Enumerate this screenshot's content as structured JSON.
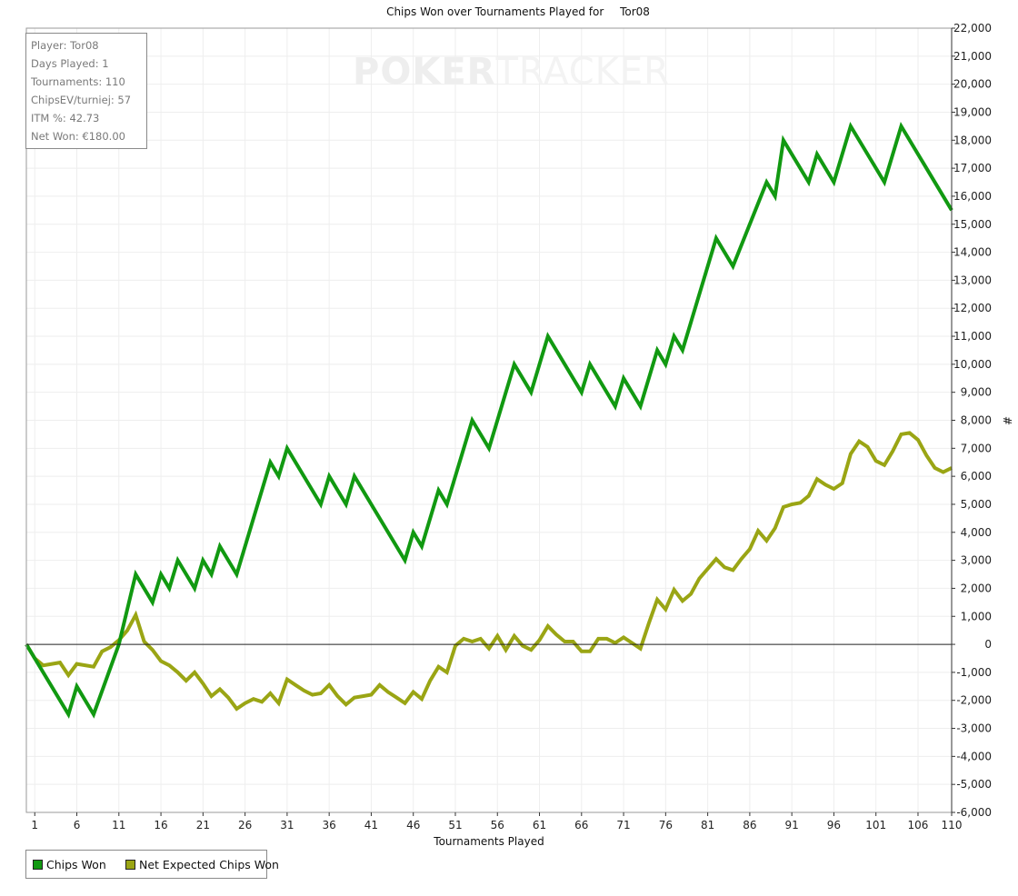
{
  "chart_data": {
    "type": "line",
    "title": "Chips Won over Tournaments Played for",
    "player_name": "Tor08",
    "xlabel": "Tournaments Played",
    "ylabel": "#",
    "xlim": [
      0,
      110
    ],
    "ylim": [
      -6000,
      22000
    ],
    "x_ticks": [
      1,
      6,
      11,
      16,
      21,
      26,
      31,
      36,
      41,
      46,
      51,
      56,
      61,
      66,
      71,
      76,
      81,
      86,
      91,
      96,
      101,
      106,
      110
    ],
    "y_ticks": [
      -6000,
      -5000,
      -4000,
      -3000,
      -2000,
      -1000,
      0,
      1000,
      2000,
      3000,
      4000,
      5000,
      6000,
      7000,
      8000,
      9000,
      10000,
      11000,
      12000,
      13000,
      14000,
      15000,
      16000,
      17000,
      18000,
      19000,
      20000,
      21000,
      22000
    ],
    "y_tick_labels": [
      "-6,000",
      "-5,000",
      "-4,000",
      "-3,000",
      "-2,000",
      "-1,000",
      "0",
      "1,000",
      "2,000",
      "3,000",
      "4,000",
      "5,000",
      "6,000",
      "7,000",
      "8,000",
      "9,000",
      "10,000",
      "11,000",
      "12,000",
      "13,000",
      "14,000",
      "15,000",
      "16,000",
      "17,000",
      "18,000",
      "19,000",
      "20,000",
      "21,000",
      "22,000"
    ],
    "grid": true,
    "legend_position": "bottom-left",
    "series": [
      {
        "name": "Chips Won",
        "color": "#119911",
        "x": [
          0,
          5,
          6,
          8,
          11,
          13,
          15,
          16,
          17,
          18,
          20,
          21,
          22,
          23,
          25,
          29,
          30,
          31,
          35,
          36,
          38,
          39,
          45,
          46,
          47,
          49,
          50,
          53,
          55,
          58,
          60,
          62,
          66,
          67,
          70,
          71,
          73,
          75,
          76,
          77,
          78,
          82,
          84,
          88,
          89,
          90,
          93,
          94,
          96,
          98,
          102,
          104,
          110
        ],
        "values": [
          0,
          -2500,
          -1500,
          -2500,
          0,
          2500,
          1500,
          2500,
          2000,
          3000,
          2000,
          3000,
          2500,
          3500,
          2500,
          6500,
          6000,
          7000,
          5000,
          6000,
          5000,
          6000,
          3000,
          4000,
          3500,
          5500,
          5000,
          8000,
          7000,
          10000,
          9000,
          11000,
          9000,
          10000,
          8500,
          9500,
          8500,
          10500,
          10000,
          11000,
          10500,
          14500,
          13500,
          16500,
          16000,
          18000,
          16500,
          17500,
          16500,
          18500,
          16500,
          18500,
          15500
        ]
      },
      {
        "name": "Net Expected Chips Won",
        "color": "#9aa514",
        "x": [
          0,
          1,
          2,
          4,
          5,
          6,
          8,
          9,
          10,
          11,
          12,
          13,
          14,
          15,
          16,
          17,
          18,
          19,
          20,
          21,
          22,
          23,
          24,
          25,
          26,
          27,
          28,
          29,
          30,
          31,
          32,
          33,
          34,
          35,
          36,
          37,
          38,
          39,
          40,
          41,
          42,
          43,
          44,
          45,
          46,
          47,
          48,
          49,
          50,
          51,
          52,
          53,
          54,
          55,
          56,
          57,
          58,
          59,
          60,
          61,
          62,
          63,
          64,
          65,
          66,
          67,
          68,
          69,
          70,
          71,
          72,
          73,
          74,
          75,
          76,
          77,
          78,
          79,
          80,
          81,
          82,
          83,
          84,
          85,
          86,
          87,
          88,
          89,
          90,
          91,
          92,
          93,
          94,
          95,
          96,
          97,
          98,
          99,
          100,
          101,
          102,
          103,
          104,
          105,
          106,
          107,
          108,
          109,
          110
        ],
        "values": [
          0,
          -500,
          -750,
          -650,
          -1100,
          -700,
          -800,
          -250,
          -100,
          150,
          500,
          1050,
          100,
          -200,
          -600,
          -750,
          -1000,
          -1300,
          -1000,
          -1400,
          -1850,
          -1600,
          -1900,
          -2300,
          -2100,
          -1950,
          -2050,
          -1750,
          -2100,
          -1250,
          -1450,
          -1650,
          -1800,
          -1750,
          -1450,
          -1850,
          -2150,
          -1900,
          -1850,
          -1800,
          -1450,
          -1700,
          -1900,
          -2100,
          -1700,
          -1950,
          -1300,
          -800,
          -1000,
          -50,
          200,
          100,
          200,
          -150,
          300,
          -200,
          300,
          -50,
          -200,
          150,
          650,
          350,
          100,
          100,
          -250,
          -250,
          200,
          200,
          50,
          250,
          50,
          -150,
          750,
          1600,
          1250,
          1950,
          1550,
          1800,
          2350,
          2700,
          3050,
          2750,
          2650,
          3050,
          3400,
          4050,
          3700,
          4150,
          4900,
          5000,
          5050,
          5300,
          5900,
          5700,
          5550,
          5750,
          6800,
          7250,
          7050,
          6550,
          6400,
          6900,
          7500,
          7550,
          7300,
          6750,
          6300,
          6150,
          6300
        ]
      }
    ]
  },
  "stats": {
    "player": "Player: Tor08",
    "days_played": "Days Played: 1",
    "tournaments": "Tournaments: 110",
    "chips_ev": "ChipsEV/turniej: 57",
    "itm": "ITM %: 42.73",
    "net_won": "Net Won: €180.00"
  },
  "watermark": {
    "part1": "POKER",
    "part2": "TRACKER"
  },
  "colors": {
    "background": "#ffffff",
    "grid": "#eeeeee",
    "zero_line": "#222222"
  }
}
